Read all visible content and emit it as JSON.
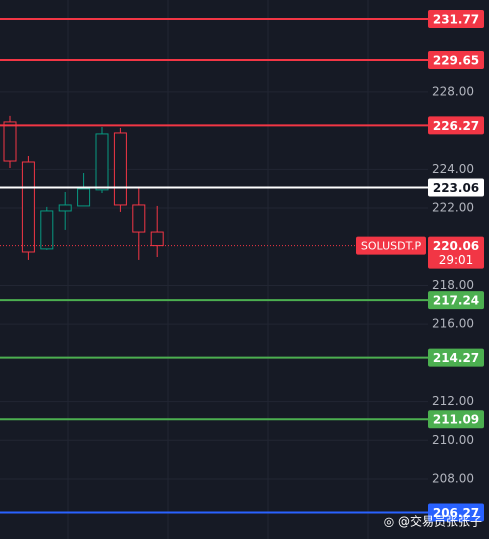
{
  "chart_data": {
    "type": "candlestick",
    "ylim": [
      204.9,
      232.75
    ],
    "yticks": [
      {
        "value": 228,
        "label": "228.00"
      },
      {
        "value": 224,
        "label": "224.00"
      },
      {
        "value": 222,
        "label": "222.00"
      },
      {
        "value": 218,
        "label": "218.00"
      },
      {
        "value": 216,
        "label": "216.00"
      },
      {
        "value": 212,
        "label": "212.00"
      },
      {
        "value": 210,
        "label": "210.00"
      },
      {
        "value": 208,
        "label": "208.00"
      }
    ],
    "grid": true,
    "series": [
      {
        "name": "SOLUSDT.P",
        "up_color": "#089981",
        "down_color": "#f23645",
        "open": [
          226.45,
          224.38,
          219.89,
          221.85,
          222.11,
          222.94,
          225.88,
          222.16,
          220.76
        ],
        "high": [
          226.76,
          224.69,
          222.06,
          222.83,
          223.81,
          226.19,
          226.14,
          223.04,
          222.11
        ],
        "low": [
          224.07,
          219.32,
          219.84,
          220.87,
          222.11,
          222.78,
          221.8,
          219.32,
          219.47
        ],
        "close": [
          224.43,
          219.73,
          221.85,
          222.16,
          222.99,
          225.83,
          222.16,
          220.76,
          220.06
        ]
      }
    ],
    "levels": [
      {
        "value": 231.77,
        "color": "#f23645"
      },
      {
        "value": 229.65,
        "color": "#f23645"
      },
      {
        "value": 226.27,
        "color": "#f23645"
      },
      {
        "value": 223.06,
        "color": "#ffffff"
      },
      {
        "value": 217.24,
        "color": "#4caf50"
      },
      {
        "value": 214.27,
        "color": "#4caf50"
      },
      {
        "value": 211.09,
        "color": "#4caf50"
      },
      {
        "value": 206.27,
        "color": "#2962ff"
      }
    ],
    "last_price": 220.06,
    "countdown": "29:01",
    "watermark": "◎ @交易员张张子"
  }
}
